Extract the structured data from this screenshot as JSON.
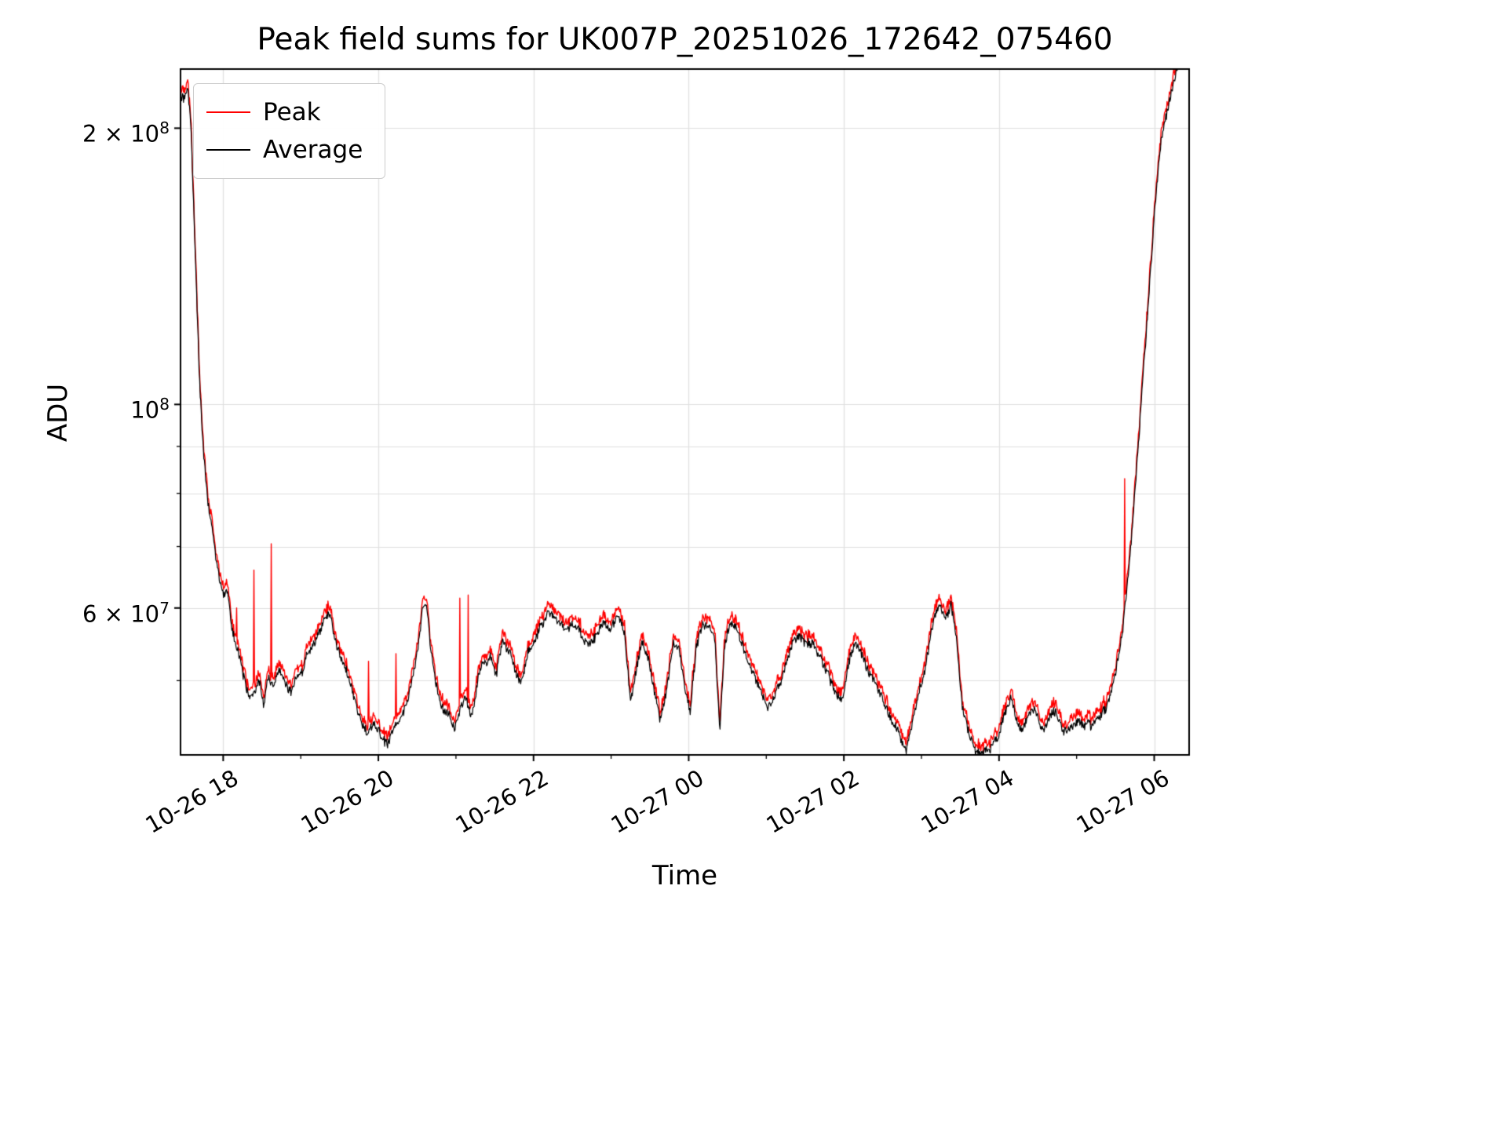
{
  "chart_data": {
    "type": "line",
    "title": "Peak field sums for UK007P_20251026_172642_075460",
    "xlabel": "Time",
    "ylabel": "ADU",
    "y_scale": "log",
    "grid": true,
    "grid_color": "#e0e0e0",
    "legend_position": "upper-left",
    "x_unit": "hours since 2025-10-26 17:00",
    "xlim": [
      0.45,
      13.45
    ],
    "ylim": [
      41500000.0,
      232000000.0
    ],
    "x_ticks": [
      {
        "t": 1,
        "label": "10-26 18"
      },
      {
        "t": 3,
        "label": "10-26 20"
      },
      {
        "t": 5,
        "label": "10-26 22"
      },
      {
        "t": 7,
        "label": "10-27 00"
      },
      {
        "t": 9,
        "label": "10-27 02"
      },
      {
        "t": 11,
        "label": "10-27 04"
      },
      {
        "t": 13,
        "label": "10-27 06"
      }
    ],
    "x_minor_ticks": [
      2,
      4,
      6,
      8,
      10,
      12
    ],
    "y_major_ticks": [
      {
        "value": 60000000.0,
        "label_base": "6 × 10",
        "label_exp": "7"
      },
      {
        "value": 100000000.0,
        "label_base": "10",
        "label_exp": "8"
      },
      {
        "value": 200000000.0,
        "label_base": "2 × 10",
        "label_exp": "8"
      }
    ],
    "y_minor_ticks": [
      50000000.0,
      70000000.0,
      80000000.0,
      90000000.0
    ],
    "series": [
      {
        "name": "Peak",
        "color": "#ff0000",
        "role": "peak"
      },
      {
        "name": "Average",
        "color": "#000000",
        "role": "average"
      }
    ],
    "samples_per_hour": 130,
    "noise_seed": 42,
    "average_keypoints": [
      [
        0.45,
        218000000.0
      ],
      [
        0.5,
        215000000.0
      ],
      [
        0.54,
        220000000.0
      ],
      [
        0.58,
        205000000.0
      ],
      [
        0.62,
        165000000.0
      ],
      [
        0.66,
        130000000.0
      ],
      [
        0.7,
        104000000.0
      ],
      [
        0.75,
        88000000.0
      ],
      [
        0.8,
        78000000.0
      ],
      [
        0.87,
        71000000.0
      ],
      [
        0.93,
        65000000.0
      ],
      [
        1.0,
        61000000.0
      ],
      [
        1.05,
        62000000.0
      ],
      [
        1.1,
        57000000.0
      ],
      [
        1.17,
        54000000.0
      ],
      [
        1.25,
        51000000.0
      ],
      [
        1.32,
        48500000.0
      ],
      [
        1.4,
        48500000.0
      ],
      [
        1.47,
        50000000.0
      ],
      [
        1.52,
        47000000.0
      ],
      [
        1.58,
        50500000.0
      ],
      [
        1.65,
        49500000.0
      ],
      [
        1.72,
        51000000.0
      ],
      [
        1.8,
        50000000.0
      ],
      [
        1.88,
        48500000.0
      ],
      [
        1.95,
        50500000.0
      ],
      [
        2.02,
        51000000.0
      ],
      [
        2.1,
        53500000.0
      ],
      [
        2.2,
        55000000.0
      ],
      [
        2.3,
        58000000.0
      ],
      [
        2.38,
        59000000.0
      ],
      [
        2.45,
        55500000.0
      ],
      [
        2.52,
        53000000.0
      ],
      [
        2.6,
        51500000.0
      ],
      [
        2.68,
        48000000.0
      ],
      [
        2.76,
        45500000.0
      ],
      [
        2.85,
        44000000.0
      ],
      [
        2.95,
        44500000.0
      ],
      [
        3.05,
        43000000.0
      ],
      [
        3.12,
        42500000.0
      ],
      [
        3.2,
        44000000.0
      ],
      [
        3.3,
        45000000.0
      ],
      [
        3.4,
        48000000.0
      ],
      [
        3.5,
        53000000.0
      ],
      [
        3.57,
        59000000.0
      ],
      [
        3.62,
        60000000.0
      ],
      [
        3.68,
        53000000.0
      ],
      [
        3.74,
        49000000.0
      ],
      [
        3.82,
        46000000.0
      ],
      [
        3.9,
        45500000.0
      ],
      [
        3.98,
        44000000.0
      ],
      [
        4.05,
        47000000.0
      ],
      [
        4.12,
        48500000.0
      ],
      [
        4.2,
        46000000.0
      ],
      [
        4.28,
        50000000.0
      ],
      [
        4.36,
        52500000.0
      ],
      [
        4.44,
        53000000.0
      ],
      [
        4.52,
        50500000.0
      ],
      [
        4.6,
        54500000.0
      ],
      [
        4.68,
        53500000.0
      ],
      [
        4.76,
        51000000.0
      ],
      [
        4.84,
        49500000.0
      ],
      [
        4.92,
        53000000.0
      ],
      [
        5.0,
        55000000.0
      ],
      [
        5.1,
        57500000.0
      ],
      [
        5.2,
        59500000.0
      ],
      [
        5.3,
        59000000.0
      ],
      [
        5.4,
        57500000.0
      ],
      [
        5.5,
        58000000.0
      ],
      [
        5.6,
        56500000.0
      ],
      [
        5.7,
        54000000.0
      ],
      [
        5.8,
        55500000.0
      ],
      [
        5.9,
        57500000.0
      ],
      [
        6.0,
        57000000.0
      ],
      [
        6.1,
        58500000.0
      ],
      [
        6.18,
        56000000.0
      ],
      [
        6.25,
        47000000.0
      ],
      [
        6.32,
        51000000.0
      ],
      [
        6.4,
        54500000.0
      ],
      [
        6.48,
        52000000.0
      ],
      [
        6.56,
        48500000.0
      ],
      [
        6.64,
        45500000.0
      ],
      [
        6.72,
        49000000.0
      ],
      [
        6.8,
        55000000.0
      ],
      [
        6.88,
        54500000.0
      ],
      [
        6.95,
        49000000.0
      ],
      [
        7.02,
        46000000.0
      ],
      [
        7.1,
        55000000.0
      ],
      [
        7.18,
        58500000.0
      ],
      [
        7.26,
        58000000.0
      ],
      [
        7.34,
        55500000.0
      ],
      [
        7.4,
        44500000.0
      ],
      [
        7.46,
        55000000.0
      ],
      [
        7.54,
        58500000.0
      ],
      [
        7.62,
        58000000.0
      ],
      [
        7.7,
        55000000.0
      ],
      [
        7.78,
        53000000.0
      ],
      [
        7.86,
        51000000.0
      ],
      [
        7.94,
        49000000.0
      ],
      [
        8.02,
        47500000.0
      ],
      [
        8.1,
        48500000.0
      ],
      [
        8.18,
        50000000.0
      ],
      [
        8.26,
        53000000.0
      ],
      [
        8.34,
        56000000.0
      ],
      [
        8.42,
        56500000.0
      ],
      [
        8.5,
        55000000.0
      ],
      [
        8.58,
        54500000.0
      ],
      [
        8.66,
        53000000.0
      ],
      [
        8.74,
        51500000.0
      ],
      [
        8.82,
        49500000.0
      ],
      [
        8.9,
        47500000.0
      ],
      [
        8.98,
        47000000.0
      ],
      [
        9.06,
        51500000.0
      ],
      [
        9.14,
        54500000.0
      ],
      [
        9.22,
        53500000.0
      ],
      [
        9.3,
        51000000.0
      ],
      [
        9.4,
        49000000.0
      ],
      [
        9.5,
        47000000.0
      ],
      [
        9.6,
        45000000.0
      ],
      [
        9.7,
        43500000.0
      ],
      [
        9.8,
        42000000.0
      ],
      [
        9.88,
        45000000.0
      ],
      [
        9.96,
        48000000.0
      ],
      [
        10.05,
        52000000.0
      ],
      [
        10.15,
        58500000.0
      ],
      [
        10.22,
        60000000.0
      ],
      [
        10.3,
        58000000.0
      ],
      [
        10.38,
        60000000.0
      ],
      [
        10.45,
        55000000.0
      ],
      [
        10.52,
        48000000.0
      ],
      [
        10.6,
        44000000.0
      ],
      [
        10.68,
        42000000.0
      ],
      [
        10.76,
        41500000.0
      ],
      [
        10.84,
        42000000.0
      ],
      [
        10.92,
        42500000.0
      ],
      [
        11.0,
        43000000.0
      ],
      [
        11.08,
        46000000.0
      ],
      [
        11.15,
        47500000.0
      ],
      [
        11.22,
        45000000.0
      ],
      [
        11.3,
        43500000.0
      ],
      [
        11.38,
        45000000.0
      ],
      [
        11.46,
        46000000.0
      ],
      [
        11.54,
        44000000.0
      ],
      [
        11.62,
        45000000.0
      ],
      [
        11.7,
        46000000.0
      ],
      [
        11.78,
        44500000.0
      ],
      [
        11.86,
        43500000.0
      ],
      [
        11.94,
        44000000.0
      ],
      [
        12.02,
        44500000.0
      ],
      [
        12.1,
        44000000.0
      ],
      [
        12.2,
        44500000.0
      ],
      [
        12.3,
        45000000.0
      ],
      [
        12.4,
        46500000.0
      ],
      [
        12.5,
        50000000.0
      ],
      [
        12.6,
        57000000.0
      ],
      [
        12.7,
        70000000.0
      ],
      [
        12.8,
        90000000.0
      ],
      [
        12.9,
        120000000.0
      ],
      [
        13.0,
        160000000.0
      ],
      [
        13.1,
        195000000.0
      ],
      [
        13.2,
        215000000.0
      ],
      [
        13.3,
        230000000.0
      ],
      [
        13.45,
        240000000.0
      ]
    ],
    "peak_spikes": [
      [
        1.17,
        60000000.0
      ],
      [
        1.4,
        66000000.0
      ],
      [
        1.62,
        70500000.0
      ],
      [
        2.87,
        52500000.0
      ],
      [
        3.23,
        53500000.0
      ],
      [
        3.58,
        61500000.0
      ],
      [
        4.05,
        61500000.0
      ],
      [
        4.16,
        62000000.0
      ],
      [
        5.18,
        61000000.0
      ],
      [
        12.62,
        83000000.0
      ]
    ]
  }
}
